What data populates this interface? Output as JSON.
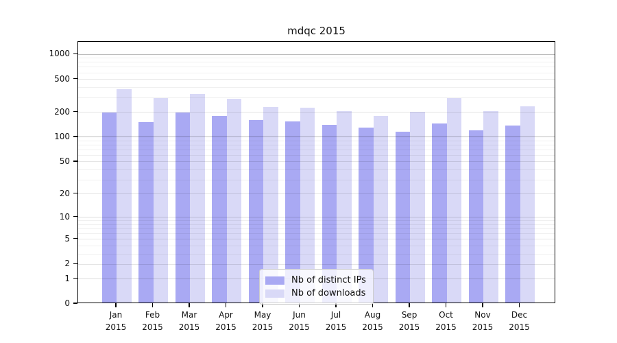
{
  "title": "mdqc 2015",
  "chart_data": {
    "type": "bar",
    "title": "mdqc 2015",
    "categories": [
      "Jan 2015",
      "Feb 2015",
      "Mar 2015",
      "Apr 2015",
      "May 2015",
      "Jun 2015",
      "Jul 2015",
      "Aug 2015",
      "Sep 2015",
      "Oct 2015",
      "Nov 2015",
      "Dec 2015"
    ],
    "series": [
      {
        "name": "Nb of distinct IPs",
        "color": "#a9a9f3",
        "values": [
          190,
          146,
          192,
          174,
          156,
          149,
          137,
          127,
          112,
          142,
          116,
          133
        ]
      },
      {
        "name": "Nb of downloads",
        "color": "#d9d9f7",
        "values": [
          365,
          284,
          320,
          280,
          225,
          221,
          201,
          174,
          196,
          284,
          201,
          229
        ]
      }
    ],
    "xlabel": "",
    "ylabel": "",
    "yscale": "log1p",
    "ylim": [
      0,
      1350
    ],
    "yticks": [
      0,
      1,
      2,
      5,
      10,
      20,
      50,
      100,
      200,
      500,
      1000
    ],
    "minor_gridlines": [
      3,
      4,
      6,
      7,
      8,
      9,
      30,
      40,
      60,
      70,
      80,
      90,
      300,
      400,
      600,
      700,
      800,
      900
    ],
    "grid": "on",
    "legend_position": "lower center",
    "colors": {
      "spine": "#000000",
      "grid_major": "#b0b0b0",
      "grid_minor": "#ededed"
    }
  }
}
